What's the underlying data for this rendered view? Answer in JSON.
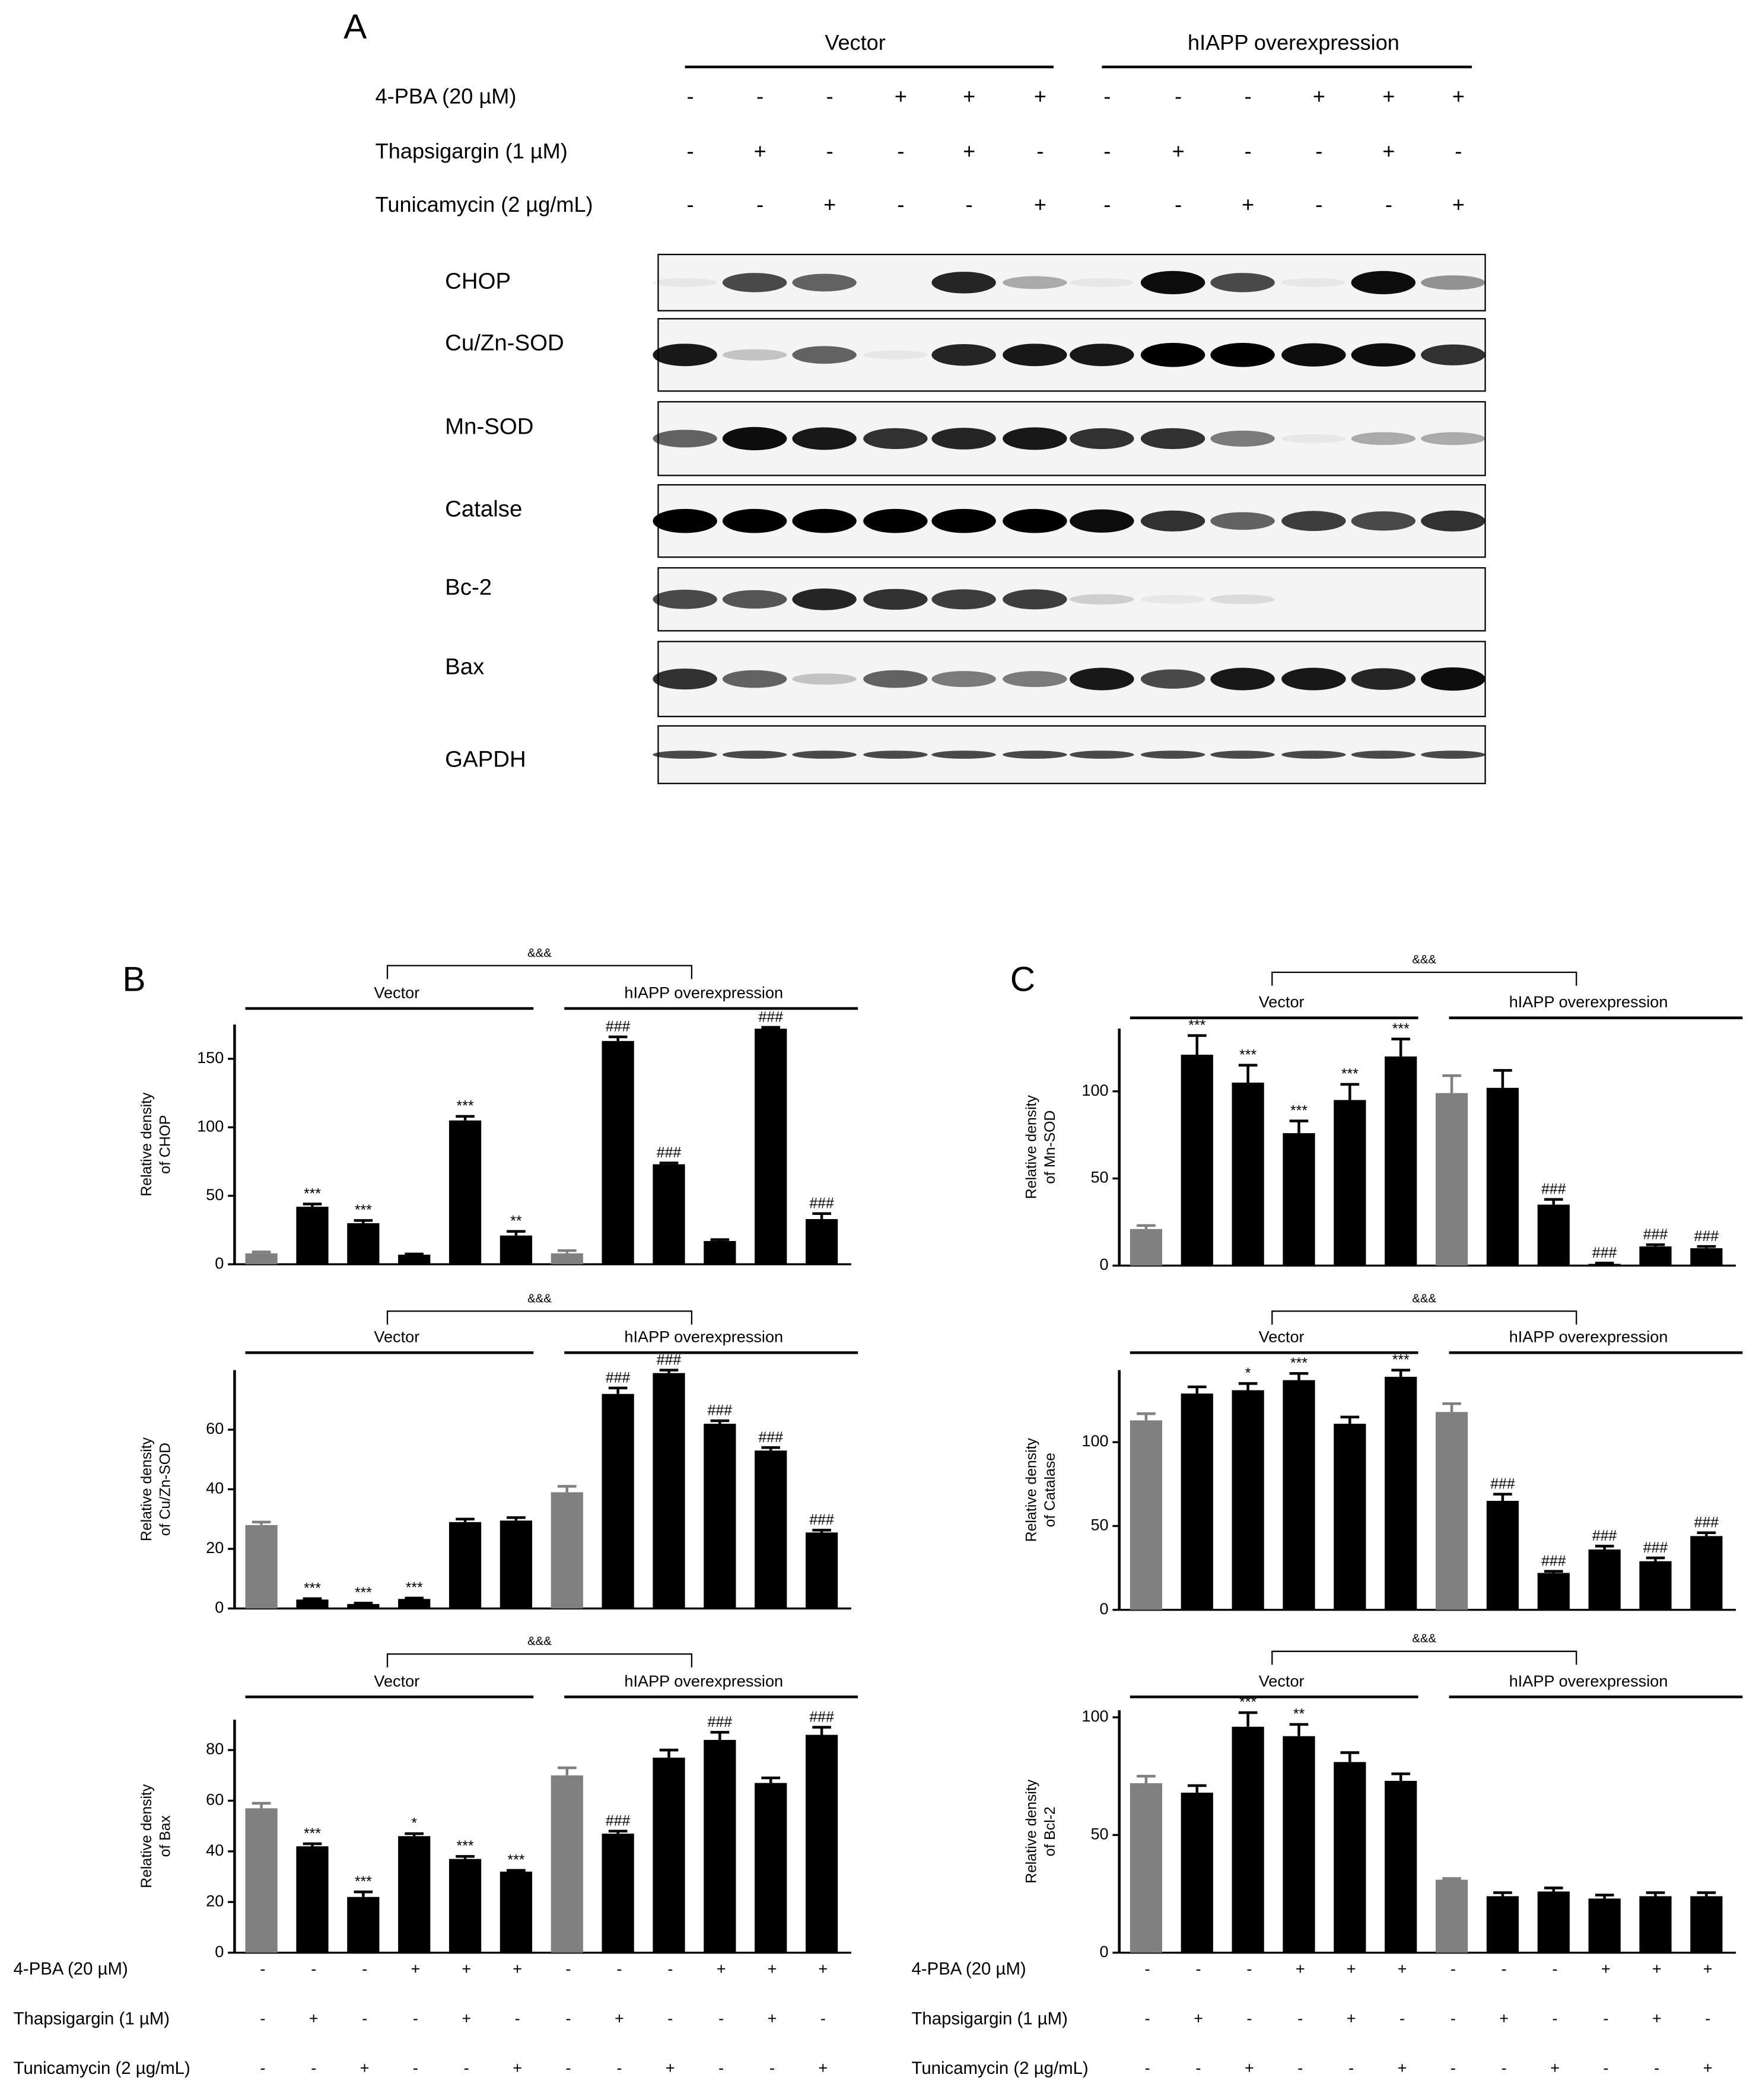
{
  "panel_a": {
    "label": "A",
    "groups": [
      "Vector",
      "hIAPP overexpression"
    ],
    "treatments": [
      {
        "name": "4-PBA (20 µM)",
        "signs": [
          "-",
          "-",
          "-",
          "+",
          "+",
          "+",
          "-",
          "-",
          "-",
          "+",
          "+",
          "+"
        ]
      },
      {
        "name": "Thapsigargin (1 µM)",
        "signs": [
          "-",
          "+",
          "-",
          "-",
          "+",
          "-",
          "-",
          "+",
          "-",
          "-",
          "+",
          "-"
        ]
      },
      {
        "name": "Tunicamycin (2 µg/mL)",
        "signs": [
          "-",
          "-",
          "+",
          "-",
          "-",
          "+",
          "-",
          "-",
          "+",
          "-",
          "-",
          "+"
        ]
      }
    ],
    "blots": [
      "CHOP",
      "Cu/Zn-SOD",
      "Mn-SOD",
      "Catalse",
      "Bc-2",
      "Bax",
      "GAPDH"
    ]
  },
  "panel_b_label": "B",
  "panel_c_label": "C",
  "chart_data": [
    {
      "type": "bar",
      "y_label": [
        "Relative density",
        "of CHOP"
      ],
      "groups": [
        "Vector",
        "hIAPP overexpression"
      ],
      "bracket_label": "&&&",
      "values": [
        8,
        42,
        30,
        7,
        105,
        21,
        8,
        163,
        73,
        17,
        172,
        33
      ],
      "errors": [
        1,
        2,
        2,
        0.5,
        3,
        3,
        2,
        3,
        1,
        1,
        1,
        4
      ],
      "annotations": [
        null,
        "***",
        "***",
        null,
        "***",
        "**",
        null,
        "###",
        "###",
        null,
        "###",
        "###"
      ],
      "colors": [
        "#808080",
        "#000000",
        "#000000",
        "#000000",
        "#000000",
        "#000000",
        "#808080",
        "#000000",
        "#000000",
        "#000000",
        "#000000",
        "#000000"
      ],
      "ylim": [
        0,
        175
      ],
      "yticks": [
        0,
        50,
        100,
        150
      ]
    },
    {
      "type": "bar",
      "y_label": [
        "Relative density",
        "of Cu/Zn-SOD"
      ],
      "groups": [
        "Vector",
        "hIAPP overexpression"
      ],
      "bracket_label": "&&&",
      "values": [
        28,
        3,
        1.5,
        3.2,
        29,
        29.5,
        39,
        72,
        79,
        62,
        53,
        25.5
      ],
      "errors": [
        1,
        0.3,
        0.3,
        0.3,
        1,
        1,
        2,
        2,
        1,
        1,
        1,
        0.8
      ],
      "annotations": [
        null,
        "***",
        "***",
        "***",
        null,
        null,
        null,
        "###",
        "###",
        "###",
        "###",
        "###"
      ],
      "colors": [
        "#808080",
        "#000000",
        "#000000",
        "#000000",
        "#000000",
        "#000000",
        "#808080",
        "#000000",
        "#000000",
        "#000000",
        "#000000",
        "#000000"
      ],
      "ylim": [
        0,
        80
      ],
      "yticks": [
        0,
        20,
        40,
        60
      ]
    },
    {
      "type": "bar",
      "y_label": [
        "Relative density",
        "of Bax"
      ],
      "groups": [
        "Vector",
        "hIAPP overexpression"
      ],
      "bracket_label": "&&&",
      "values": [
        57,
        42,
        22,
        46,
        37,
        32,
        70,
        47,
        77,
        84,
        67,
        86
      ],
      "errors": [
        2,
        1,
        2,
        1,
        1,
        0.5,
        3,
        1,
        3,
        3,
        2,
        3
      ],
      "annotations": [
        null,
        "***",
        "***",
        "*",
        "***",
        "***",
        null,
        "###",
        null,
        "###",
        null,
        "###"
      ],
      "colors": [
        "#808080",
        "#000000",
        "#000000",
        "#000000",
        "#000000",
        "#000000",
        "#808080",
        "#000000",
        "#000000",
        "#000000",
        "#000000",
        "#000000"
      ],
      "ylim": [
        0,
        92
      ],
      "yticks": [
        0,
        20,
        40,
        60,
        80
      ]
    },
    {
      "type": "bar",
      "y_label": [
        "Relative density",
        "of Mn-SOD"
      ],
      "groups": [
        "Vector",
        "hIAPP overexpression"
      ],
      "bracket_label": "&&&",
      "values": [
        21,
        121,
        105,
        76,
        95,
        120,
        99,
        102,
        35,
        1,
        11,
        10
      ],
      "errors": [
        2,
        11,
        10,
        7,
        9,
        10,
        10,
        10,
        3,
        0.5,
        1,
        1
      ],
      "annotations": [
        null,
        "***",
        "***",
        "***",
        "***",
        "***",
        null,
        null,
        "###",
        "###",
        "###",
        "###"
      ],
      "colors": [
        "#808080",
        "#000000",
        "#000000",
        "#000000",
        "#000000",
        "#000000",
        "#808080",
        "#000000",
        "#000000",
        "#000000",
        "#000000",
        "#000000"
      ],
      "ylim": [
        0,
        136
      ],
      "yticks": [
        0,
        50,
        100
      ]
    },
    {
      "type": "bar",
      "y_label": [
        "Relative density",
        "of Catalase"
      ],
      "groups": [
        "Vector",
        "hIAPP overexpression"
      ],
      "bracket_label": "&&&",
      "values": [
        113,
        129,
        131,
        137,
        111,
        139,
        118,
        65,
        22,
        36,
        29,
        44
      ],
      "errors": [
        4,
        4,
        4,
        4,
        4,
        4,
        5,
        4,
        1,
        2,
        2,
        2
      ],
      "annotations": [
        null,
        null,
        "*",
        "***",
        null,
        "***",
        null,
        "###",
        "###",
        "###",
        "###",
        "###"
      ],
      "colors": [
        "#808080",
        "#000000",
        "#000000",
        "#000000",
        "#000000",
        "#000000",
        "#808080",
        "#000000",
        "#000000",
        "#000000",
        "#000000",
        "#000000"
      ],
      "ylim": [
        0,
        143
      ],
      "yticks": [
        0,
        50,
        100
      ]
    },
    {
      "type": "bar",
      "y_label": [
        "Relative density",
        "of Bcl-2"
      ],
      "groups": [
        "Vector",
        "hIAPP overexpression"
      ],
      "bracket_label": "&&&",
      "values": [
        72,
        68,
        96,
        92,
        81,
        73,
        31,
        24,
        26,
        23,
        24,
        24
      ],
      "errors": [
        3,
        3,
        6,
        5,
        4,
        3,
        0.5,
        1.5,
        1.5,
        1.5,
        1.5,
        1.5
      ],
      "annotations": [
        null,
        null,
        "***",
        "**",
        null,
        null,
        null,
        null,
        null,
        null,
        null,
        null
      ],
      "colors": [
        "#808080",
        "#000000",
        "#000000",
        "#000000",
        "#000000",
        "#000000",
        "#808080",
        "#000000",
        "#000000",
        "#000000",
        "#000000",
        "#000000"
      ],
      "ylim": [
        0,
        103
      ],
      "yticks": [
        0,
        50,
        100
      ]
    }
  ]
}
